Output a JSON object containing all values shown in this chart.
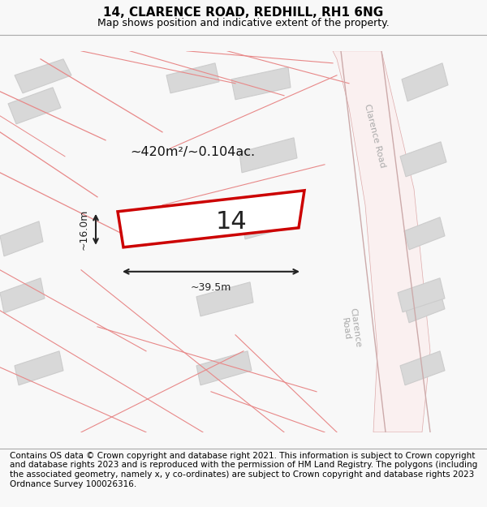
{
  "title": "14, CLARENCE ROAD, REDHILL, RH1 6NG",
  "subtitle": "Map shows position and indicative extent of the property.",
  "property_number": "14",
  "area_label": "~420m²/~0.104ac.",
  "width_label": "~39.5m",
  "height_label": "~16.0m",
  "footer_text": "Contains OS data © Crown copyright and database right 2021. This information is subject to Crown copyright and database rights 2023 and is reproduced with the permission of HM Land Registry. The polygons (including the associated geometry, namely x, y co-ordinates) are subject to Crown copyright and database rights 2023 Ordnance Survey 100026316.",
  "bg_color": "#f8f8f8",
  "map_bg": "#ffffff",
  "road_color": "#f5b8b8",
  "road_outline": "#e88888",
  "building_color": "#d8d8d8",
  "building_outline": "#cccccc",
  "property_fill": "#ffffff",
  "property_outline": "#cc0000",
  "dim_color": "#222222",
  "street_label_color": "#999999",
  "title_fontsize": 11,
  "subtitle_fontsize": 9,
  "footer_fontsize": 7.5
}
